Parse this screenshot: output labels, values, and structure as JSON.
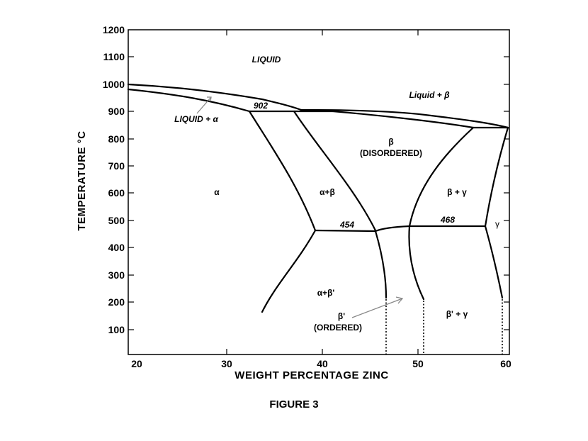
{
  "figure": {
    "caption": "FIGURE 3",
    "x_axis_title": "WEIGHT PERCENTAGE ZINC",
    "y_axis_title": "TEMPERATURE °C",
    "x_ticks": [
      "20",
      "30",
      "40",
      "50",
      "60"
    ],
    "y_ticks": [
      "100",
      "200",
      "300",
      "400",
      "500",
      "600",
      "700",
      "800",
      "900",
      "1000",
      "1100",
      "1200"
    ],
    "regions": {
      "liquid": "LIQUID",
      "liquid_beta": "Liquid + β",
      "liquid_alpha": "LIQUID + α",
      "beta": "β",
      "disordered": "(DISORDERED)",
      "alpha": "α",
      "alpha_beta": "α+β",
      "beta_gamma": "β + γ",
      "gamma": "γ",
      "alpha_beta_prime": "α+β'",
      "beta_prime": "β'",
      "ordered": "(ORDERED)",
      "beta_prime_gamma": "β' + γ"
    },
    "temps": {
      "t902": "902",
      "t454": "454",
      "t468": "468"
    }
  }
}
